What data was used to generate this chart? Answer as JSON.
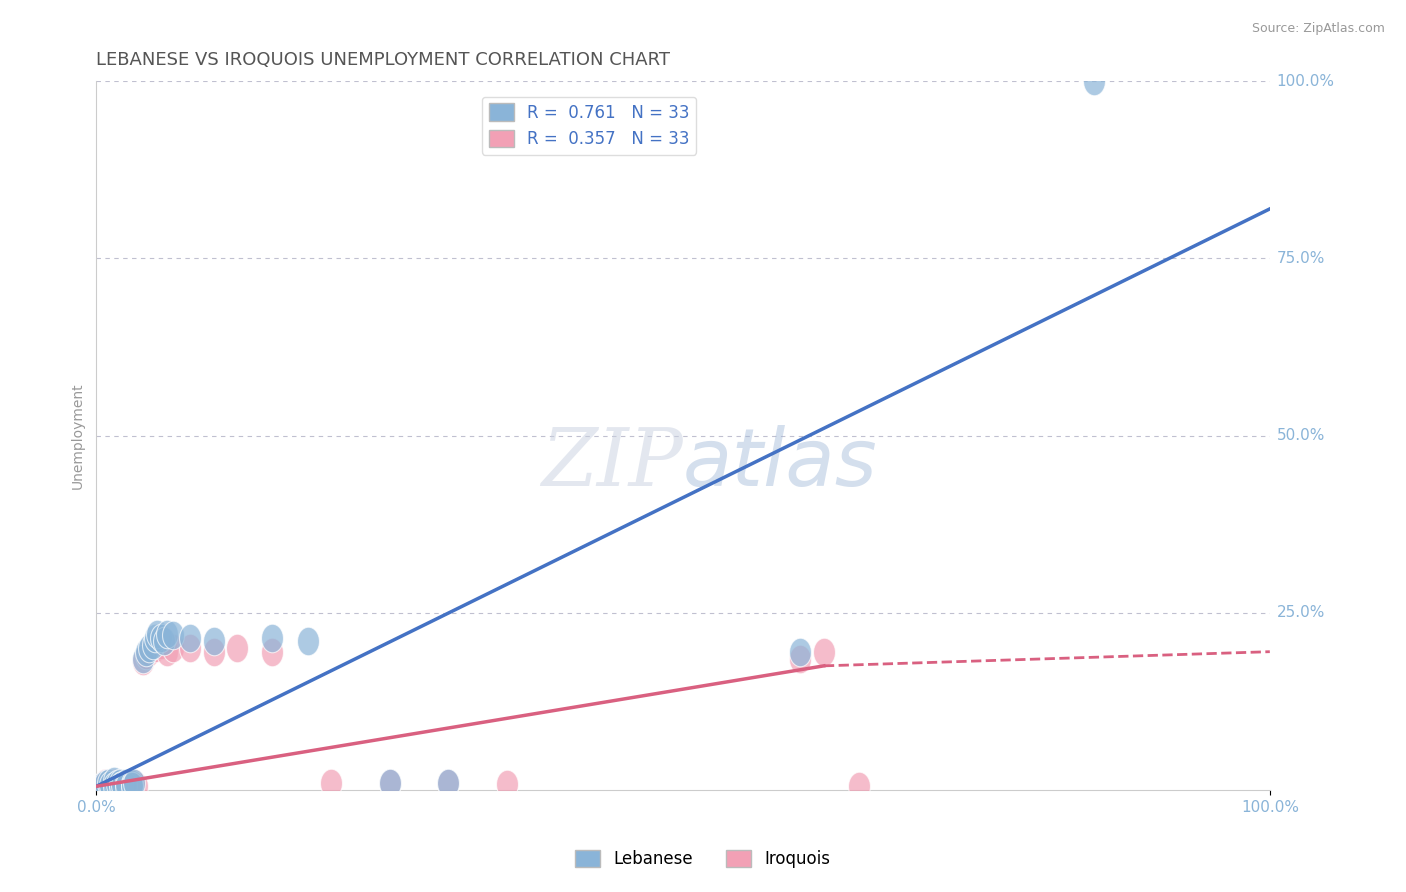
{
  "title": "LEBANESE VS IROQUOIS UNEMPLOYMENT CORRELATION CHART",
  "source_text": "Source: ZipAtlas.com",
  "ylabel": "Unemployment",
  "watermark_zip": "ZIP",
  "watermark_atlas": "atlas",
  "xlim": [
    0.0,
    1.0
  ],
  "ylim": [
    0.0,
    1.0
  ],
  "ytick_positions": [
    0.25,
    0.5,
    0.75,
    1.0
  ],
  "ytick_labels": [
    "25.0%",
    "50.0%",
    "75.0%",
    "100.0%"
  ],
  "legend_r1": "R =  0.761   N = 33",
  "legend_r2": "R =  0.357   N = 33",
  "lebanese_color": "#8ab4d8",
  "iroquois_color": "#f2a0b5",
  "blue_line_color": "#4472c4",
  "pink_line_color": "#d96080",
  "grid_color": "#c0c0d0",
  "title_color": "#555555",
  "tick_color": "#8ab4d8",
  "background_color": "#ffffff",
  "lebanese_points": [
    [
      0.005,
      0.005
    ],
    [
      0.007,
      0.008
    ],
    [
      0.01,
      0.01
    ],
    [
      0.012,
      0.007
    ],
    [
      0.015,
      0.012
    ],
    [
      0.015,
      0.005
    ],
    [
      0.018,
      0.008
    ],
    [
      0.02,
      0.01
    ],
    [
      0.02,
      0.005
    ],
    [
      0.022,
      0.007
    ],
    [
      0.025,
      0.01
    ],
    [
      0.025,
      0.005
    ],
    [
      0.03,
      0.008
    ],
    [
      0.03,
      0.005
    ],
    [
      0.032,
      0.01
    ],
    [
      0.04,
      0.185
    ],
    [
      0.042,
      0.195
    ],
    [
      0.045,
      0.2
    ],
    [
      0.048,
      0.205
    ],
    [
      0.05,
      0.215
    ],
    [
      0.052,
      0.22
    ],
    [
      0.055,
      0.215
    ],
    [
      0.058,
      0.21
    ],
    [
      0.06,
      0.22
    ],
    [
      0.065,
      0.218
    ],
    [
      0.08,
      0.215
    ],
    [
      0.1,
      0.21
    ],
    [
      0.15,
      0.215
    ],
    [
      0.18,
      0.21
    ],
    [
      0.25,
      0.01
    ],
    [
      0.3,
      0.01
    ],
    [
      0.6,
      0.195
    ],
    [
      0.85,
      1.0
    ]
  ],
  "iroquois_points": [
    [
      0.005,
      0.005
    ],
    [
      0.007,
      0.01
    ],
    [
      0.01,
      0.005
    ],
    [
      0.012,
      0.008
    ],
    [
      0.015,
      0.01
    ],
    [
      0.015,
      0.003
    ],
    [
      0.018,
      0.006
    ],
    [
      0.02,
      0.008
    ],
    [
      0.02,
      0.003
    ],
    [
      0.022,
      0.005
    ],
    [
      0.025,
      0.008
    ],
    [
      0.028,
      0.004
    ],
    [
      0.03,
      0.006
    ],
    [
      0.032,
      0.01
    ],
    [
      0.035,
      0.005
    ],
    [
      0.04,
      0.182
    ],
    [
      0.042,
      0.19
    ],
    [
      0.045,
      0.195
    ],
    [
      0.05,
      0.2
    ],
    [
      0.055,
      0.205
    ],
    [
      0.06,
      0.195
    ],
    [
      0.065,
      0.2
    ],
    [
      0.08,
      0.2
    ],
    [
      0.1,
      0.195
    ],
    [
      0.12,
      0.2
    ],
    [
      0.15,
      0.195
    ],
    [
      0.2,
      0.01
    ],
    [
      0.25,
      0.01
    ],
    [
      0.3,
      0.01
    ],
    [
      0.35,
      0.008
    ],
    [
      0.6,
      0.185
    ],
    [
      0.62,
      0.195
    ],
    [
      0.65,
      0.005
    ]
  ],
  "blue_line": {
    "x0": 0.0,
    "y0": 0.005,
    "x1": 1.0,
    "y1": 0.82
  },
  "pink_line_solid_x0": 0.0,
  "pink_line_solid_y0": 0.005,
  "pink_line_solid_x1": 0.62,
  "pink_line_solid_y1": 0.175,
  "pink_line_dashed_x0": 0.62,
  "pink_line_dashed_y0": 0.175,
  "pink_line_dashed_x1": 1.0,
  "pink_line_dashed_y1": 0.195,
  "title_fontsize": 13,
  "tick_fontsize": 11,
  "legend_fontsize": 12,
  "watermark_fontsize": 58
}
